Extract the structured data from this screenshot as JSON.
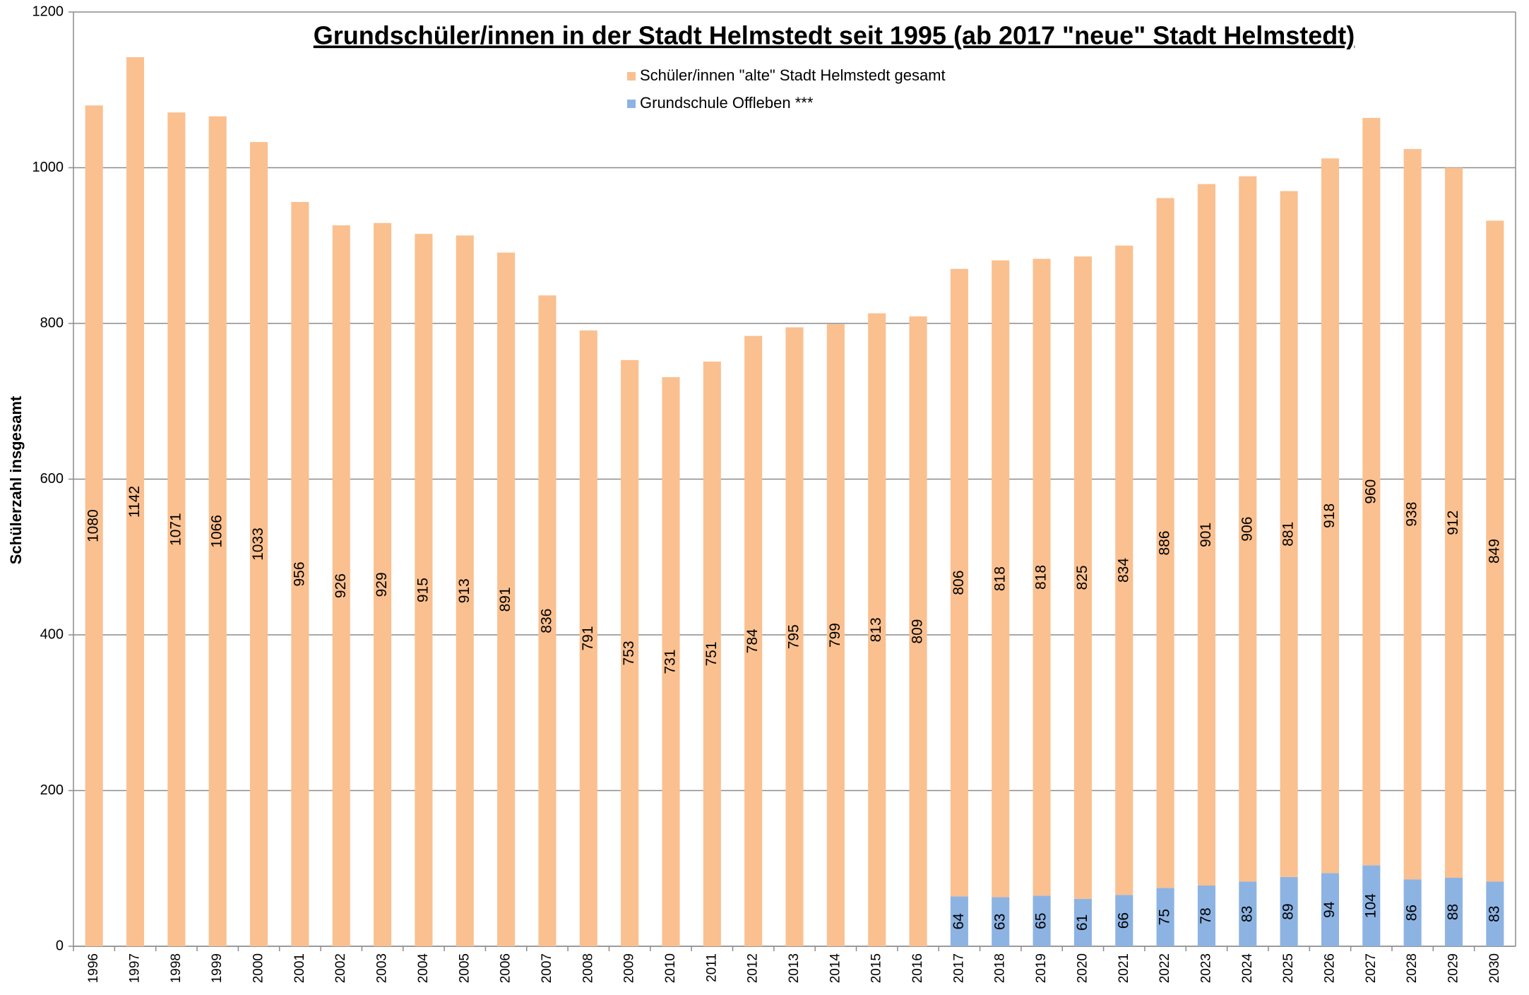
{
  "chart_data": {
    "type": "stacked-bar",
    "title": "Grundschüler/innen in der Stadt Helmstedt seit 1995 (ab 2017 \"neue\" Stadt Helmstedt)",
    "y_label": "Schülerzahl insgesamt",
    "categories": [
      "1996",
      "1997",
      "1998",
      "1999",
      "2000",
      "2001",
      "2002",
      "2003",
      "2004",
      "2005",
      "2006",
      "2007",
      "2008",
      "2009",
      "2010",
      "2011",
      "2012",
      "2013",
      "2014",
      "2015",
      "2016",
      "2017",
      "2018",
      "2019",
      "2020",
      "2021",
      "2022",
      "2023",
      "2024",
      "2025",
      "2026",
      "2027",
      "2028",
      "2029",
      "2030"
    ],
    "series": [
      {
        "name": "Schüler/innen \"alte\" Stadt Helmstedt gesamt",
        "color": "#fac090",
        "values": [
          1080,
          1142,
          1071,
          1066,
          1033,
          956,
          926,
          929,
          915,
          913,
          891,
          836,
          791,
          753,
          731,
          751,
          784,
          795,
          799,
          813,
          809,
          806,
          818,
          818,
          825,
          834,
          886,
          901,
          906,
          881,
          918,
          960,
          938,
          912,
          849
        ]
      },
      {
        "name": "Grundschule Offleben ***",
        "color": "#8db3e2",
        "values": [
          null,
          null,
          null,
          null,
          null,
          null,
          null,
          null,
          null,
          null,
          null,
          null,
          null,
          null,
          null,
          null,
          null,
          null,
          null,
          null,
          null,
          64,
          63,
          65,
          61,
          66,
          75,
          78,
          83,
          89,
          94,
          104,
          86,
          88,
          83
        ]
      }
    ],
    "ylim": [
      0,
      1200
    ],
    "yticks": [
      0,
      200,
      400,
      600,
      800,
      1000,
      1200
    ],
    "grid": true
  }
}
